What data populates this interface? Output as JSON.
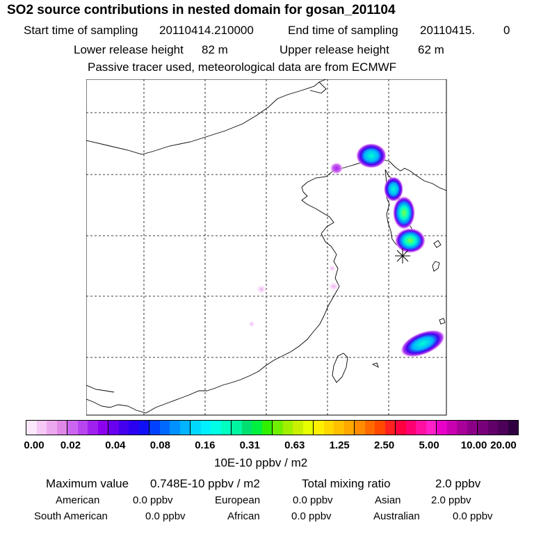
{
  "header": {
    "title": "SO2 source contributions in nested domain for gosan_201104",
    "start_label": "Start time of sampling",
    "start_value": "20110414.210000",
    "end_label": "End time of sampling",
    "end_value": "20110415.",
    "end_suffix": "0",
    "lower_label": "Lower release height",
    "lower_value": "82 m",
    "upper_label": "Upper release height",
    "upper_value": "62 m",
    "note": "Passive tracer used, meteorological data are from ECMWF"
  },
  "map": {
    "receptor_marker": "star-icon",
    "plumes": [
      {
        "name": "north-korea-border",
        "intensity": "medium"
      },
      {
        "name": "liaoning",
        "intensity": "low"
      },
      {
        "name": "korean-west-coast",
        "intensity": "medium-high"
      },
      {
        "name": "korea-south",
        "intensity": "medium"
      },
      {
        "name": "east-china-sea",
        "intensity": "medium"
      }
    ]
  },
  "colorbar": {
    "colors": [
      [
        "#fbe8fb",
        "#f5c8f5",
        "#eca8ee",
        "#e088e8"
      ],
      [
        "#cc66f0",
        "#b844f0",
        "#a020f0",
        "#8c00ee"
      ],
      [
        "#6a00f0",
        "#4400ee",
        "#2a00f0",
        "#1010f8"
      ],
      [
        "#0040ff",
        "#0068ff",
        "#0090ff",
        "#00b4ff"
      ],
      [
        "#00d8ff",
        "#00f0ff",
        "#00ffe6",
        "#00ffc0"
      ],
      [
        "#00f5a0",
        "#00e070",
        "#00f040",
        "#30f000"
      ],
      [
        "#70f000",
        "#a0f000",
        "#c8f000",
        "#e8ff00"
      ],
      [
        "#fff000",
        "#ffd800",
        "#ffc000",
        "#ffa800"
      ],
      [
        "#ff8c00",
        "#ff6a00",
        "#ff4800",
        "#ff2020"
      ],
      [
        "#ff0040",
        "#ff0070",
        "#ff10a0",
        "#ff20c8"
      ],
      [
        "#e800c8",
        "#c800b0",
        "#a80098",
        "#8c0088"
      ],
      [
        "#780078",
        "#600068",
        "#4c0058",
        "#300040"
      ]
    ],
    "ticks": [
      "0.00",
      "0.02",
      "0.04",
      "0.08",
      "0.16",
      "0.31",
      "0.63",
      "1.25",
      "2.50",
      "5.00",
      "10.00",
      "20.00"
    ],
    "unit": "10E-10 ppbv / m2"
  },
  "summary": {
    "max_label": "Maximum value",
    "max_value": "0.748E-10 ppbv / m2",
    "total_label": "Total mixing ratio",
    "total_value": "2.0 ppbv",
    "regions": [
      {
        "name": "American",
        "value": "0.0 ppbv"
      },
      {
        "name": "European",
        "value": "0.0 ppbv"
      },
      {
        "name": "Asian",
        "value": "2.0 ppbv"
      },
      {
        "name": "South American",
        "value": "0.0 ppbv"
      },
      {
        "name": "African",
        "value": "0.0 ppbv"
      },
      {
        "name": "Australian",
        "value": "0.0 ppbv"
      }
    ]
  }
}
